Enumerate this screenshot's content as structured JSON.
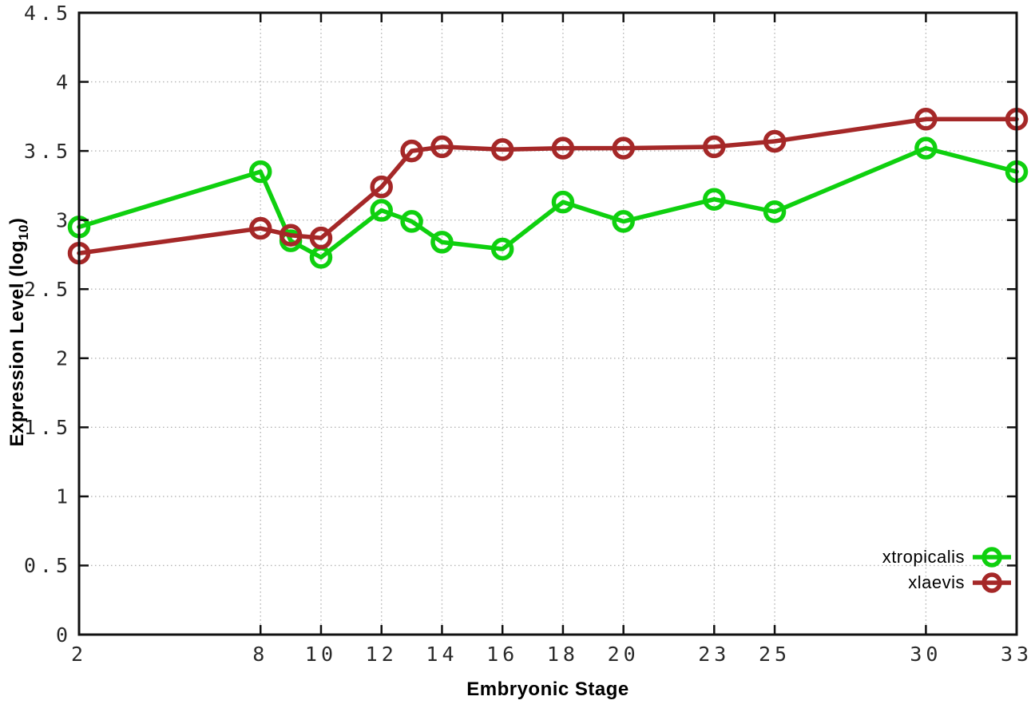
{
  "chart_data": {
    "type": "line",
    "title": "",
    "xlabel": "Embryonic Stage",
    "ylabel": "Expression Level (log10)",
    "ylabel_parts": {
      "main": "Expression Level (log",
      "sub": "10",
      "suffix": ")"
    },
    "x": [
      2,
      8,
      9,
      10,
      12,
      13,
      14,
      16,
      18,
      20,
      23,
      25,
      30,
      33
    ],
    "series": [
      {
        "name": "xtropicalis",
        "color": "#0fd00f",
        "values": [
          2.95,
          3.35,
          2.85,
          2.73,
          3.07,
          2.99,
          2.84,
          2.79,
          3.13,
          2.99,
          3.15,
          3.06,
          3.52,
          3.35
        ]
      },
      {
        "name": "xlaevis",
        "color": "#a52828",
        "values": [
          2.76,
          2.94,
          2.89,
          2.87,
          3.24,
          3.5,
          3.53,
          3.51,
          3.52,
          3.52,
          3.53,
          3.57,
          3.73,
          3.73
        ]
      }
    ],
    "xlim": [
      2,
      33
    ],
    "ylim": [
      0,
      4.5
    ],
    "xticks": [
      2,
      8,
      10,
      12,
      14,
      16,
      18,
      20,
      23,
      25,
      30,
      33
    ],
    "xtick_labels": [
      "2",
      "8",
      "10",
      "12",
      "14",
      "16",
      "18",
      "20",
      "23",
      "25",
      "30",
      "33"
    ],
    "yticks": [
      0,
      0.5,
      1,
      1.5,
      2,
      2.5,
      3,
      3.5,
      4,
      4.5
    ],
    "ytick_labels": [
      "0",
      "0.5",
      "1",
      "1.5",
      "2",
      "2.5",
      "3",
      "3.5",
      "4",
      "4.5"
    ],
    "grid": true,
    "legend_position": "bottom-right",
    "marker": "open-circle",
    "background": "#ffffff",
    "grid_color": "#b4b4b4",
    "axis_color": "#111111",
    "tick_label_color": "#2a2a2a"
  }
}
